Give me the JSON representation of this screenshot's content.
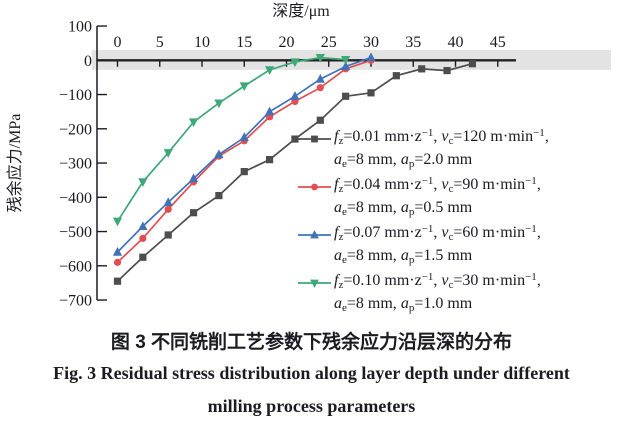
{
  "figure": {
    "caption_cn": "图 3  不同铣削工艺参数下残余应力沿层深的分布",
    "caption_en_line1": "Fig. 3  Residual stress distribution along layer depth under different",
    "caption_en_line2": "milling process parameters"
  },
  "colors": {
    "axis_text": "#1b1b22",
    "zero_band": "#e3e3e3",
    "series_black": "#4d4d4d",
    "series_red": "#e04e52",
    "series_blue": "#3f72b8",
    "series_green": "#3ea878"
  },
  "chart_data": {
    "type": "line",
    "xlabel": "深度/μm",
    "ylabel": "残余应力/MPa",
    "x_ticks": [
      0,
      5,
      10,
      15,
      20,
      25,
      30,
      35,
      40,
      45
    ],
    "y_ticks": [
      100,
      0,
      -100,
      -200,
      -300,
      -400,
      -500,
      -600,
      -700
    ],
    "xlim": [
      0,
      47
    ],
    "ylim": [
      -700,
      100
    ],
    "zero_band": [
      -28,
      30
    ],
    "grid": false,
    "legend_position": "right",
    "series": [
      {
        "name": "fz=0.01 mm·z-1, vc=120 m·min-1, ae=8 mm, ap=2.0 mm",
        "marker": "square",
        "color": "#4d4d4d",
        "x": [
          0,
          3,
          6,
          9,
          12,
          15,
          18,
          21,
          24,
          27,
          30,
          33,
          36,
          39,
          42
        ],
        "values": [
          -645,
          -575,
          -510,
          -445,
          -395,
          -325,
          -290,
          -230,
          -175,
          -105,
          -95,
          -45,
          -25,
          -30,
          -10
        ],
        "legend_line1": [
          {
            "i": "f"
          },
          {
            "s": "z"
          },
          {
            "t": "=0.01 mm·z"
          },
          {
            "p": "−1"
          },
          {
            "t": ", "
          },
          {
            "i": "v"
          },
          {
            "s": "c"
          },
          {
            "t": "=120 m·min"
          },
          {
            "p": "−1"
          },
          {
            "t": ","
          }
        ],
        "legend_line2": [
          {
            "i": "a"
          },
          {
            "s": "e"
          },
          {
            "t": "=8 mm, "
          },
          {
            "i": "a"
          },
          {
            "s": "p"
          },
          {
            "t": "=2.0 mm"
          }
        ]
      },
      {
        "name": "fz=0.04 mm·z-1, vc=90 m·min-1, ae=8 mm, ap=0.5 mm",
        "marker": "circle",
        "color": "#e04e52",
        "x": [
          0,
          3,
          6,
          9,
          12,
          15,
          18,
          21,
          24,
          27,
          30
        ],
        "values": [
          -590,
          -520,
          -435,
          -355,
          -280,
          -235,
          -165,
          -120,
          -80,
          -25,
          0
        ],
        "legend_line1": [
          {
            "i": "f"
          },
          {
            "s": "z"
          },
          {
            "t": "=0.04 mm·z"
          },
          {
            "p": "−1"
          },
          {
            "t": ", "
          },
          {
            "i": "v"
          },
          {
            "s": "c"
          },
          {
            "t": "=90 m·min"
          },
          {
            "p": "−1"
          },
          {
            "t": ","
          }
        ],
        "legend_line2": [
          {
            "i": "a"
          },
          {
            "s": "e"
          },
          {
            "t": "=8 mm, "
          },
          {
            "i": "a"
          },
          {
            "s": "p"
          },
          {
            "t": "=0.5 mm"
          }
        ]
      },
      {
        "name": "fz=0.07 mm·z-1, vc=60 m·min-1, ae=8 mm, ap=1.5 mm",
        "marker": "triangle-up",
        "color": "#3f72b8",
        "x": [
          0,
          3,
          6,
          9,
          12,
          15,
          18,
          21,
          24,
          27,
          30
        ],
        "values": [
          -560,
          -485,
          -415,
          -345,
          -275,
          -225,
          -150,
          -105,
          -55,
          -18,
          8
        ],
        "legend_line1": [
          {
            "i": "f"
          },
          {
            "s": "z"
          },
          {
            "t": "=0.07 mm·z"
          },
          {
            "p": "−1"
          },
          {
            "t": ", "
          },
          {
            "i": "v"
          },
          {
            "s": "c"
          },
          {
            "t": "=60 m·min"
          },
          {
            "p": "−1"
          },
          {
            "t": ","
          }
        ],
        "legend_line2": [
          {
            "i": "a"
          },
          {
            "s": "e"
          },
          {
            "t": "=8 mm, "
          },
          {
            "i": "a"
          },
          {
            "s": "p"
          },
          {
            "t": "=1.5 mm"
          }
        ]
      },
      {
        "name": "fz=0.10 mm·z-1, vc=30 m·min-1, ae=8 mm, ap=1.0 mm",
        "marker": "triangle-down",
        "color": "#3ea878",
        "x": [
          0,
          3,
          6,
          9,
          12,
          15,
          18,
          21,
          24,
          27
        ],
        "values": [
          -470,
          -355,
          -270,
          -180,
          -125,
          -75,
          -28,
          -5,
          8,
          2
        ],
        "legend_line1": [
          {
            "i": "f"
          },
          {
            "s": "z"
          },
          {
            "t": "=0.10 mm·z"
          },
          {
            "p": "−1"
          },
          {
            "t": ", "
          },
          {
            "i": "v"
          },
          {
            "s": "c"
          },
          {
            "t": "=30 m·min"
          },
          {
            "p": "−1"
          },
          {
            "t": ","
          }
        ],
        "legend_line2": [
          {
            "i": "a"
          },
          {
            "s": "e"
          },
          {
            "t": "=8 mm, "
          },
          {
            "i": "a"
          },
          {
            "s": "p"
          },
          {
            "t": "=1.0 mm"
          }
        ]
      }
    ]
  }
}
